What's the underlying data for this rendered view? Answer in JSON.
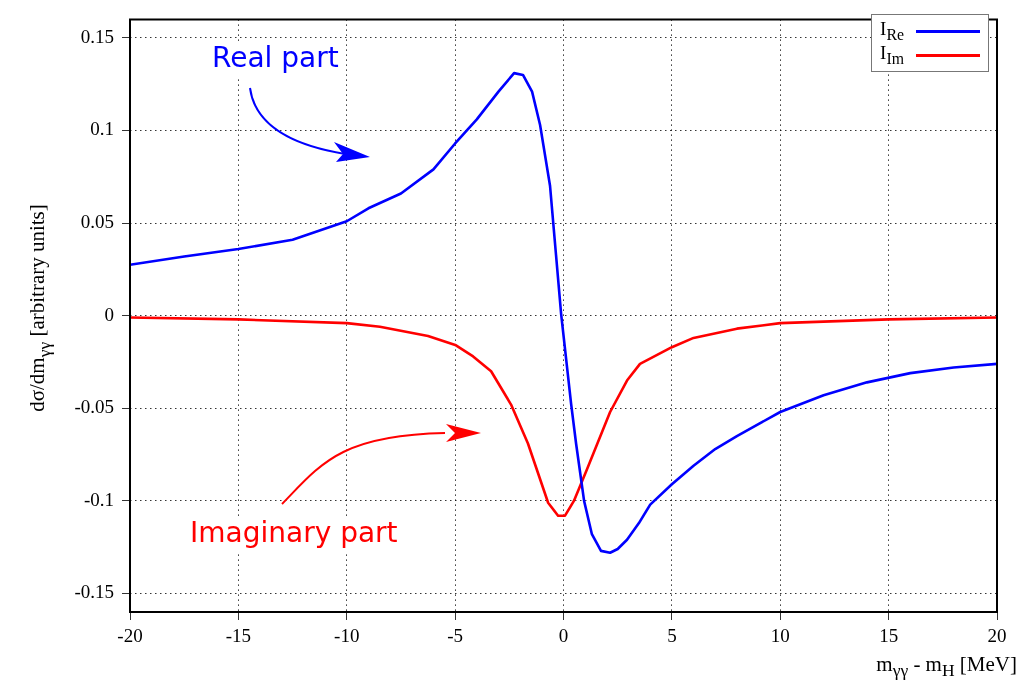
{
  "chart_data": {
    "type": "line",
    "xlabel": "m$_{γγ}$ - m$_{H}$ [MeV]",
    "ylabel": "dσ/dm$_{γγ}$ [arbitrary units]",
    "annotations": [
      "Real part",
      "Imaginary part"
    ],
    "xlim": [
      -20,
      20
    ],
    "xticks": [
      -20,
      -15,
      -10,
      -5,
      0,
      5,
      10,
      15,
      20
    ],
    "ylim": [
      -0.16,
      0.16
    ],
    "yticks": [
      -0.15,
      -0.1,
      -0.05,
      0,
      0.05,
      0.1,
      0.15
    ],
    "grid": true,
    "legend": "top right",
    "marker": "none",
    "line_style": "solid",
    "series": [
      {
        "name": "I$_{Re}$",
        "color": "#0000ff",
        "x": [
          -20,
          -17.5,
          -15,
          -12.5,
          -10,
          -9,
          -7.5,
          -6,
          -5,
          -4,
          -3,
          -2.28,
          -1.87,
          -1.45,
          -1.08,
          -0.62,
          -0.11,
          0.35,
          0.58,
          0.95,
          1.31,
          1.73,
          2.15,
          2.5,
          2.93,
          3.48,
          4,
          5,
          6,
          7,
          8,
          10,
          12,
          14,
          16,
          18,
          20
        ],
        "values": [
          0.0275,
          0.032,
          0.036,
          0.041,
          0.051,
          0.058,
          0.066,
          0.079,
          0.093,
          0.106,
          0.121,
          0.131,
          0.13,
          0.121,
          0.103,
          0.07,
          0.001,
          -0.0475,
          -0.069,
          -0.1,
          -0.118,
          -0.127,
          -0.128,
          -0.126,
          -0.121,
          -0.112,
          -0.102,
          -0.091,
          -0.081,
          -0.072,
          -0.065,
          -0.052,
          -0.043,
          -0.036,
          -0.031,
          -0.028,
          -0.026
        ]
      },
      {
        "name": "I$_{Im}$",
        "color": "#ff0000",
        "x": [
          -20,
          -15,
          -10,
          -8.47,
          -6.25,
          -4.96,
          -4.17,
          -3.34,
          -2.42,
          -1.64,
          -0.71,
          -0.25,
          0.07,
          0.48,
          1.08,
          2.15,
          2.93,
          3.53,
          5,
          6,
          8,
          10,
          15,
          20
        ],
        "values": [
          -0.001,
          -0.002,
          -0.004,
          -0.006,
          -0.011,
          -0.016,
          -0.022,
          -0.03,
          -0.048,
          -0.069,
          -0.101,
          -0.108,
          -0.108,
          -0.1,
          -0.083,
          -0.052,
          -0.035,
          -0.026,
          -0.017,
          -0.012,
          -0.007,
          -0.004,
          -0.002,
          -0.001
        ]
      }
    ]
  }
}
